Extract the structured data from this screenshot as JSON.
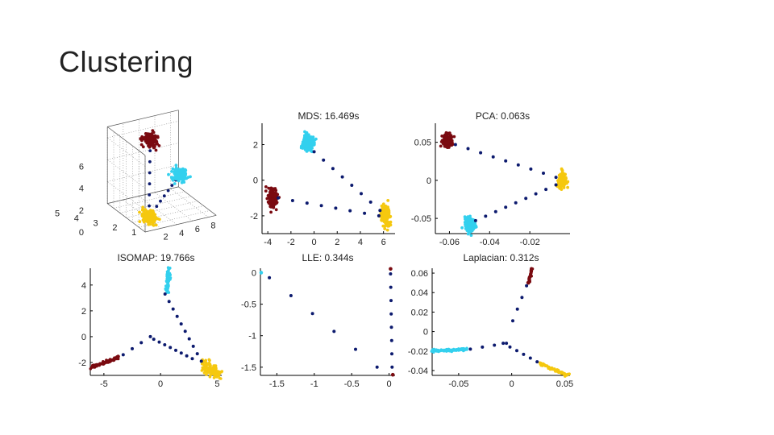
{
  "slide": {
    "title": "Clustering"
  },
  "colors": {
    "dark_red": "#7a0a10",
    "cyan": "#33d0ee",
    "yellow": "#f5c80f",
    "navy": "#0c1a6e",
    "axis": "#000000",
    "grid": "#9a9a9a"
  },
  "chart_data": [
    {
      "id": "input3d",
      "type": "scatter",
      "title": "",
      "xlabel": "",
      "ylabel": "",
      "zticks": [
        "0",
        "2",
        "4",
        "6"
      ],
      "xticks": [
        "2",
        "4",
        "6",
        "8"
      ],
      "yticks": [
        "5",
        "4",
        "3",
        "2",
        "1"
      ],
      "clusters": [
        {
          "name": "dark-red",
          "color": "#7a0a10",
          "center": [
            3.2,
            3.2,
            6.5
          ]
        },
        {
          "name": "cyan",
          "color": "#33d0ee",
          "center": [
            7.0,
            3.3,
            2.6
          ]
        },
        {
          "name": "yellow",
          "color": "#f5c80f",
          "center": [
            1.6,
            1.4,
            0.5
          ]
        }
      ],
      "connector_color": "#0c1a6e"
    },
    {
      "id": "mds",
      "type": "scatter",
      "title": "MDS: 16.469s",
      "xlim": [
        -4.5,
        7
      ],
      "ylim": [
        -3,
        3.2
      ],
      "xticks": [
        -4,
        -2,
        0,
        2,
        4,
        6
      ],
      "xtick_labels": [
        "-4",
        "-2",
        "0",
        "2",
        "4",
        "6"
      ],
      "yticks": [
        2,
        0,
        -2
      ],
      "ytick_labels": [
        "2",
        "0",
        "-2"
      ],
      "clusters": [
        {
          "name": "cyan",
          "color": "#33d0ee",
          "center": [
            -0.5,
            2.1
          ],
          "spread": [
            0.45,
            0.5
          ],
          "n": 160
        },
        {
          "name": "dark-red",
          "color": "#7a0a10",
          "center": [
            -3.6,
            -1.0
          ],
          "spread": [
            0.4,
            0.55
          ],
          "n": 160
        },
        {
          "name": "yellow",
          "color": "#f5c80f",
          "center": [
            6.2,
            -2.0
          ],
          "spread": [
            0.4,
            0.55
          ],
          "n": 160
        }
      ],
      "connectors": [
        {
          "from": [
            -3.1,
            -1.0
          ],
          "to": [
            5.6,
            -2.0
          ],
          "n": 8
        },
        {
          "from": [
            0.0,
            1.6
          ],
          "to": [
            5.7,
            -1.7
          ],
          "n": 8
        }
      ]
    },
    {
      "id": "pca",
      "type": "scatter",
      "title": "PCA: 0.063s",
      "xlim": [
        -0.067,
        0.0
      ],
      "ylim": [
        -0.07,
        0.075
      ],
      "xticks": [
        -0.06,
        -0.04,
        -0.02
      ],
      "xtick_labels": [
        "-0.06",
        "-0.04",
        "-0.02"
      ],
      "yticks": [
        0.05,
        0,
        -0.05
      ],
      "ytick_labels": [
        "0.05",
        "0",
        "-0.05"
      ],
      "clusters": [
        {
          "name": "dark-red",
          "color": "#7a0a10",
          "center": [
            -0.061,
            0.053
          ],
          "spread": [
            0.0025,
            0.008
          ],
          "n": 160
        },
        {
          "name": "yellow",
          "color": "#f5c80f",
          "center": [
            -0.004,
            0.0
          ],
          "spread": [
            0.0022,
            0.009
          ],
          "n": 160
        },
        {
          "name": "cyan",
          "color": "#33d0ee",
          "center": [
            -0.05,
            -0.058
          ],
          "spread": [
            0.0025,
            0.009
          ],
          "n": 160
        }
      ],
      "connectors": [
        {
          "from": [
            -0.057,
            0.047
          ],
          "to": [
            -0.007,
            0.004
          ],
          "n": 9
        },
        {
          "from": [
            -0.047,
            -0.053
          ],
          "to": [
            -0.007,
            -0.006
          ],
          "n": 9
        }
      ]
    },
    {
      "id": "isomap",
      "type": "scatter",
      "title": "ISOMAP: 19.766s",
      "xlim": [
        -6.2,
        5.4
      ],
      "ylim": [
        -3,
        5.3
      ],
      "xticks": [
        -5,
        0,
        5
      ],
      "xtick_labels": [
        "-5",
        "0",
        "5"
      ],
      "yticks": [
        4,
        2,
        0,
        -2
      ],
      "ytick_labels": [
        "4",
        "2",
        "0",
        "-2"
      ],
      "segments": [
        {
          "name": "cyan",
          "color": "#33d0ee",
          "from": [
            0.55,
            3.5
          ],
          "to": [
            0.75,
            5.3
          ],
          "n": 60,
          "jitter": [
            0.08,
            0.08
          ]
        },
        {
          "name": "dark-red",
          "color": "#7a0a10",
          "from": [
            -6.1,
            -2.4
          ],
          "to": [
            -3.7,
            -1.6
          ],
          "n": 70,
          "jitter": [
            0.05,
            0.05
          ]
        },
        {
          "name": "yellow",
          "color": "#f5c80f",
          "from": [
            3.8,
            -2.1
          ],
          "to": [
            5.1,
            -3.0
          ],
          "n": 110,
          "jitter": [
            0.2,
            0.2
          ]
        }
      ],
      "connectors": [
        {
          "from": [
            0.4,
            3.3
          ],
          "to": [
            3.6,
            -1.9
          ],
          "n": 10
        },
        {
          "from": [
            -3.3,
            -1.4
          ],
          "to": [
            -0.9,
            0.0
          ],
          "n": 4
        },
        {
          "from": [
            -0.6,
            -0.2
          ],
          "to": [
            2.8,
            -1.7
          ],
          "n": 8
        }
      ]
    },
    {
      "id": "lle",
      "type": "scatter",
      "title": "LLE: 0.344s",
      "xlim": [
        -1.72,
        0.08
      ],
      "ylim": [
        -1.63,
        0.07
      ],
      "xticks": [
        -1.5,
        -1,
        -0.5,
        0
      ],
      "xtick_labels": [
        "-1.5",
        "-1",
        "-0.5",
        "0"
      ],
      "yticks": [
        0,
        -0.5,
        -1,
        -1.5
      ],
      "ytick_labels": [
        "0",
        "-0.5",
        "-1",
        "-1.5"
      ],
      "markers": [
        {
          "name": "cyan-point",
          "color": "#33d0ee",
          "x": -1.71,
          "y": 0.0
        },
        {
          "name": "dark-red-point-top",
          "color": "#7a0a10",
          "x": 0.02,
          "y": 0.06
        },
        {
          "name": "dark-red-point-bottom",
          "color": "#7a0a10",
          "x": 0.05,
          "y": -1.62
        }
      ],
      "connectors": [
        {
          "from": [
            -1.6,
            -0.08
          ],
          "to": [
            -0.16,
            -1.5
          ],
          "n": 6
        },
        {
          "from": [
            0.02,
            -0.02
          ],
          "to": [
            0.04,
            -1.5
          ],
          "n": 8
        }
      ]
    },
    {
      "id": "laplacian",
      "type": "scatter",
      "title": "Laplacian: 0.312s",
      "xlim": [
        -0.075,
        0.055
      ],
      "ylim": [
        -0.045,
        0.065
      ],
      "xticks": [
        -0.05,
        0,
        0.05
      ],
      "xtick_labels": [
        "-0.05",
        "0",
        "0.05"
      ],
      "yticks": [
        0.06,
        0.04,
        0.02,
        0,
        -0.02,
        -0.04
      ],
      "ytick_labels": [
        "0.06",
        "0.04",
        "0.02",
        "0",
        "-0.02",
        "-0.04"
      ],
      "segments": [
        {
          "name": "dark-red",
          "color": "#7a0a10",
          "from": [
            0.016,
            0.05
          ],
          "to": [
            0.019,
            0.065
          ],
          "n": 40,
          "jitter": [
            0.0006,
            0.0006
          ]
        },
        {
          "name": "cyan",
          "color": "#33d0ee",
          "from": [
            -0.075,
            -0.02
          ],
          "to": [
            -0.042,
            -0.018
          ],
          "n": 70,
          "jitter": [
            0.0008,
            0.0006
          ]
        },
        {
          "name": "yellow",
          "color": "#f5c80f",
          "from": [
            0.027,
            -0.033
          ],
          "to": [
            0.053,
            -0.045
          ],
          "n": 70,
          "jitter": [
            0.0008,
            0.0006
          ]
        }
      ],
      "connectors": [
        {
          "from": [
            0.014,
            0.047
          ],
          "to": [
            0.001,
            0.011
          ],
          "n": 4
        },
        {
          "from": [
            -0.039,
            -0.018
          ],
          "to": [
            -0.005,
            -0.012
          ],
          "n": 4
        },
        {
          "from": [
            -0.008,
            -0.012
          ],
          "to": [
            0.024,
            -0.031
          ],
          "n": 6
        }
      ]
    }
  ]
}
